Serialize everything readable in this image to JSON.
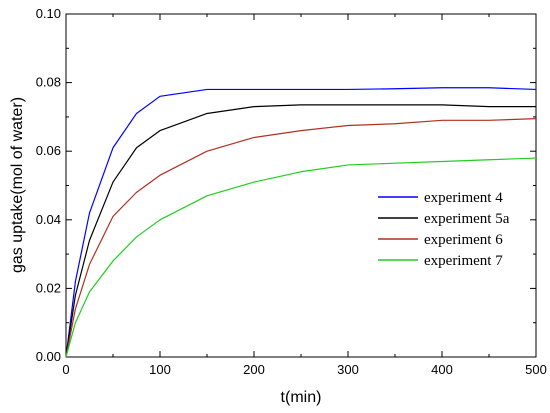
{
  "chart_data": {
    "type": "line",
    "title": "",
    "xlabel": "t(min)",
    "ylabel": "gas uptake(mol of water)",
    "xlim": [
      0,
      500
    ],
    "ylim": [
      0,
      0.1
    ],
    "xticks": [
      0,
      100,
      200,
      300,
      400,
      500
    ],
    "yticks": [
      0.0,
      0.02,
      0.04,
      0.06,
      0.08,
      0.1
    ],
    "ytick_labels": [
      "0.00",
      "0.02",
      "0.04",
      "0.06",
      "0.08",
      "0.10"
    ],
    "grid": false,
    "legend_position": "right",
    "x": [
      0,
      10,
      25,
      50,
      75,
      100,
      150,
      200,
      250,
      300,
      350,
      400,
      450,
      500
    ],
    "series": [
      {
        "name": "experiment 4",
        "color": "#0000ff",
        "values": [
          0,
          0.022,
          0.042,
          0.061,
          0.071,
          0.076,
          0.078,
          0.078,
          0.078,
          0.078,
          0.0782,
          0.0785,
          0.0785,
          0.078
        ]
      },
      {
        "name": "experiment 5a",
        "color": "#000000",
        "values": [
          0,
          0.018,
          0.034,
          0.051,
          0.061,
          0.066,
          0.071,
          0.073,
          0.0735,
          0.0735,
          0.0735,
          0.0735,
          0.073,
          0.073
        ]
      },
      {
        "name": "experiment 6",
        "color": "#b03020",
        "values": [
          0,
          0.014,
          0.027,
          0.041,
          0.048,
          0.053,
          0.06,
          0.064,
          0.066,
          0.0675,
          0.068,
          0.069,
          0.069,
          0.0695
        ]
      },
      {
        "name": "experiment 7",
        "color": "#22cc22",
        "values": [
          0,
          0.01,
          0.019,
          0.028,
          0.035,
          0.04,
          0.047,
          0.051,
          0.054,
          0.056,
          0.0565,
          0.057,
          0.0575,
          0.058
        ]
      }
    ]
  }
}
